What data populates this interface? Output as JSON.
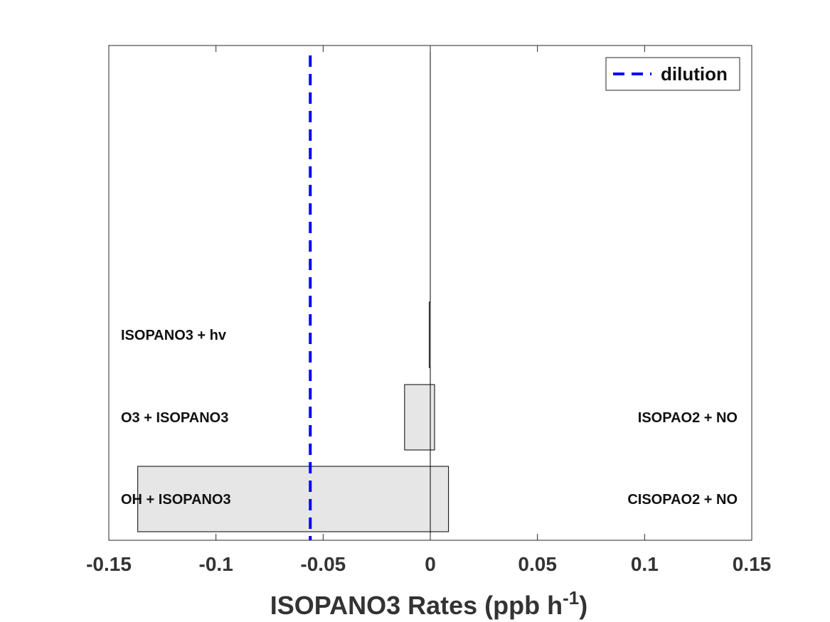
{
  "chart_data": {
    "type": "bar",
    "orientation": "horizontal-stacked",
    "xlabel": "ISOPANO3 Rates (ppb h",
    "xlabel_superscript": "-1",
    "xlabel_close": ")",
    "xlim": [
      -0.15,
      0.15
    ],
    "xticks": [
      -0.15,
      -0.1,
      -0.05,
      0,
      0.05,
      0.1,
      0.15
    ],
    "xtick_labels": [
      "-0.15",
      "-0.1",
      "-0.05",
      "0",
      "0.05",
      "0.1",
      "0.15"
    ],
    "grid": false,
    "legend_position": "top-right",
    "rows": [
      {
        "loss_label": "OH + ISOPANO3",
        "gain_label": "CISOPAO2 + NO",
        "loss": -0.1365,
        "gain": 0.0085
      },
      {
        "loss_label": "O3 + ISOPANO3",
        "gain_label": "ISOPAO2 + NO",
        "loss": -0.012,
        "gain": 0.002
      },
      {
        "loss_label": "ISOPANO3 + hv",
        "gain_label": "",
        "loss": -0.0005,
        "gain": 0.0
      }
    ],
    "dilution": {
      "name": "dilution",
      "value": -0.056,
      "color": "#0000ff",
      "style": "dashed"
    },
    "bar_fill": "#e6e6e6",
    "bar_stroke": "#000000"
  }
}
